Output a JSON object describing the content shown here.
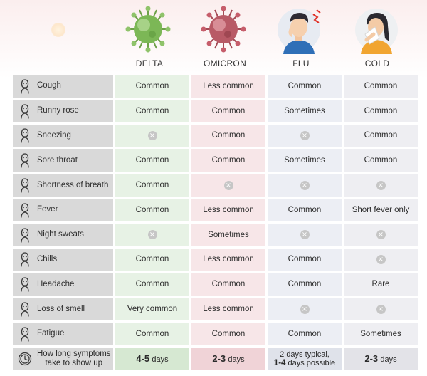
{
  "columns": [
    "DELTA",
    "OMICRON",
    "FLU",
    "COLD"
  ],
  "rows": [
    {
      "symptom": "Cough",
      "icon": "cough-icon",
      "values": [
        "Common",
        "Less common",
        "Common",
        "Common"
      ]
    },
    {
      "symptom": "Runny rose",
      "icon": "nose-icon",
      "values": [
        "Common",
        "Common",
        "Sometimes",
        "Common"
      ]
    },
    {
      "symptom": "Sneezing",
      "icon": "sneezing-icon",
      "values": [
        "x",
        "Common",
        "x",
        "Common"
      ]
    },
    {
      "symptom": "Sore throat",
      "icon": "sore-throat-icon",
      "values": [
        "Common",
        "Common",
        "Sometimes",
        "Common"
      ]
    },
    {
      "symptom": "Shortness of breath",
      "icon": "shortness-of-breath-icon",
      "values": [
        "Common",
        "x",
        "x",
        "x"
      ]
    },
    {
      "symptom": "Fever",
      "icon": "fever-icon",
      "values": [
        "Common",
        "Less common",
        "Common",
        "Short fever only"
      ]
    },
    {
      "symptom": "Night sweats",
      "icon": "night-sweats-icon",
      "values": [
        "x",
        "Sometimes",
        "x",
        "x"
      ]
    },
    {
      "symptom": "Chills",
      "icon": "chills-icon",
      "values": [
        "Common",
        "Less common",
        "Common",
        "x"
      ]
    },
    {
      "symptom": "Headache",
      "icon": "headache-icon",
      "values": [
        "Common",
        "Common",
        "Common",
        "Rare"
      ]
    },
    {
      "symptom": "Loss of smell",
      "icon": "loss-of-smell-icon",
      "values": [
        "Very common",
        "Less common",
        "x",
        "x"
      ]
    },
    {
      "symptom": "Fatigue",
      "icon": "fatigue-icon",
      "values": [
        "Common",
        "Common",
        "Common",
        "Sometimes"
      ]
    }
  ],
  "onset": {
    "label_line1": "How long symptoms",
    "label_line2": "take to show up",
    "delta": {
      "num": "4-5",
      "unit": "days"
    },
    "omicron": {
      "num": "2-3",
      "unit": "days"
    },
    "flu": {
      "line1": "2 days typical,",
      "line2_num": "1-4",
      "line2_rest": "days possible"
    },
    "cold": {
      "num": "2-3",
      "unit": "days"
    }
  },
  "colors": {
    "delta": "#e7f2e5",
    "omicron": "#f7e6e8",
    "flu": "#eceef4",
    "cold": "#eeeef2",
    "label": "#d9d9d9",
    "x": "#c6c6c6"
  },
  "absent_mark": "×"
}
